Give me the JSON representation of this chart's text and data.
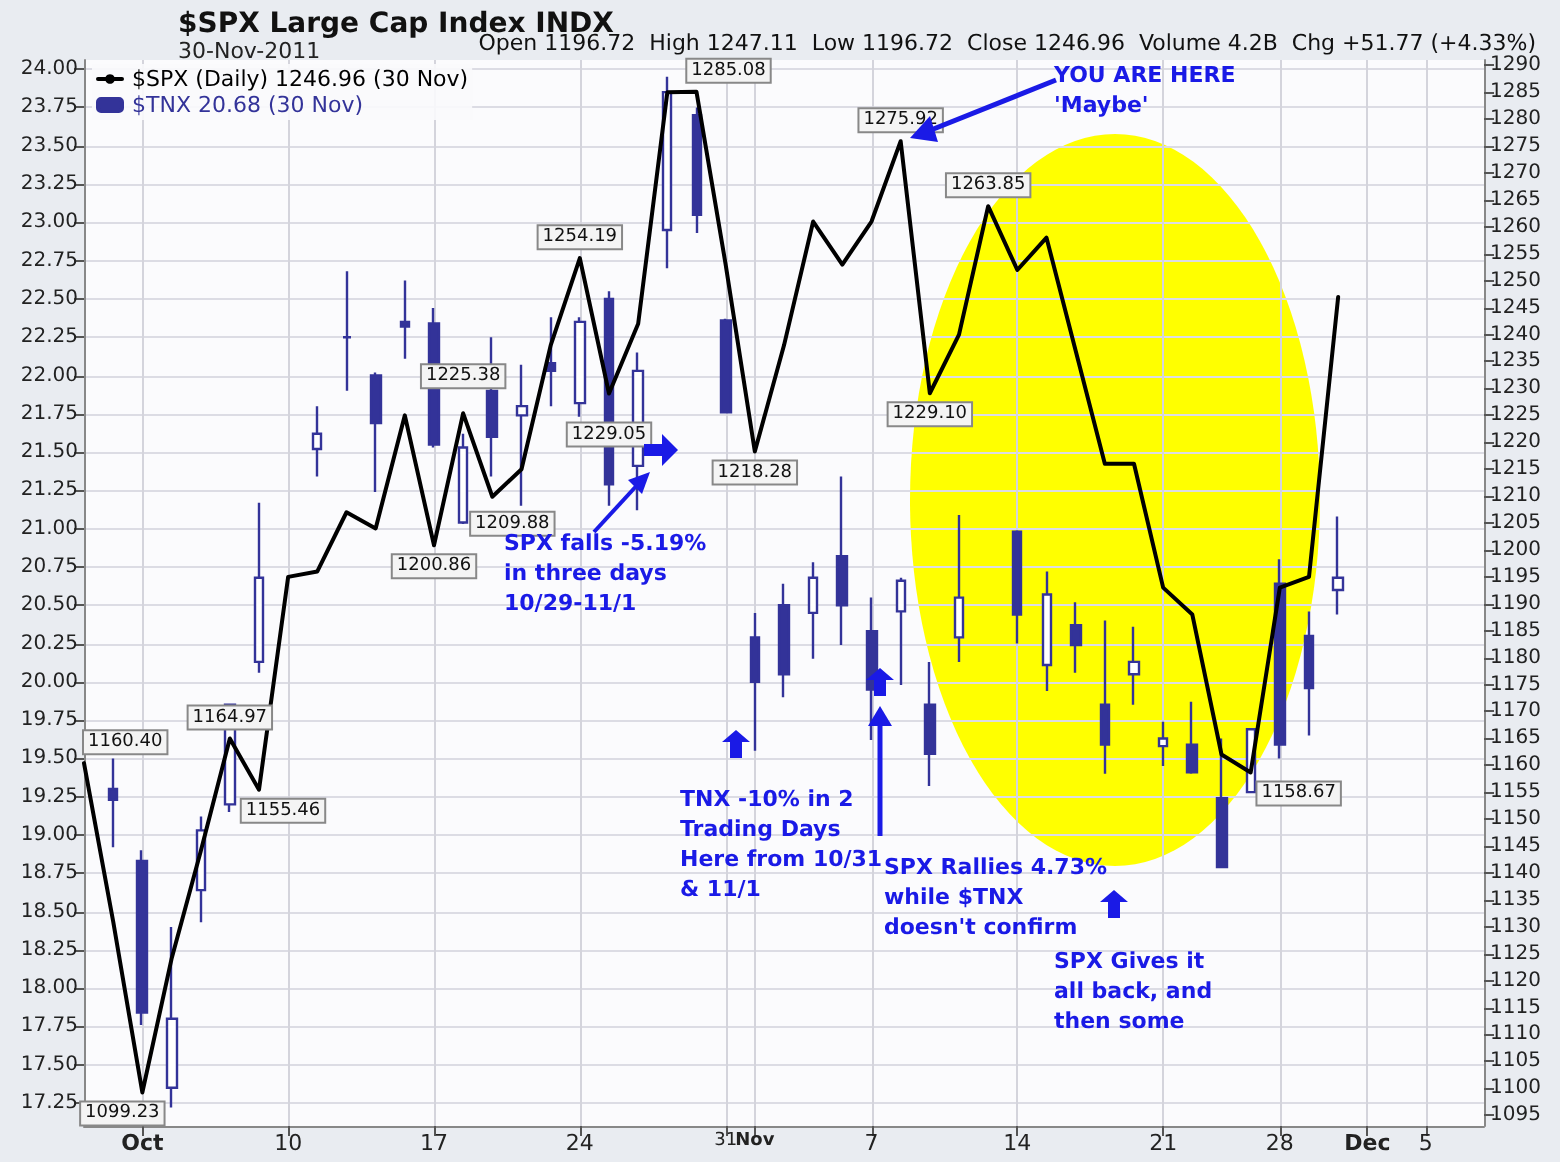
{
  "chart_data": {
    "type": "line",
    "title": "$SPX Large Cap Index INDX",
    "subtitle": "30-Nov-2011",
    "categories": [
      null,
      null,
      "Oct",
      null,
      null,
      null,
      null,
      "10",
      null,
      null,
      null,
      null,
      "17",
      null,
      null,
      null,
      null,
      "24",
      null,
      null,
      null,
      null,
      "31",
      "Nov",
      null,
      null,
      null,
      "7",
      null,
      null,
      null,
      null,
      "14",
      null,
      null,
      null,
      null,
      "21",
      null,
      null,
      null,
      "28",
      null,
      null,
      "Dec",
      null,
      "5",
      null,
      null
    ],
    "series": [
      {
        "name": "$SPX (Daily) 1246.96 (30 Nov)",
        "axis": "y2",
        "color": "#000000",
        "values": [
          1160.4,
          1131,
          1099.23,
          1124,
          1144,
          1164.97,
          1155.46,
          1195,
          1196,
          1207,
          1204,
          1225,
          1200.86,
          1225.38,
          1209.88,
          1215,
          1238,
          1254.19,
          1229.05,
          1242,
          1285,
          1285.08,
          1253,
          1218.28,
          1238,
          1261,
          1253,
          1261,
          1275.92,
          1229.1,
          1240,
          1263.85,
          1252,
          1258,
          1237,
          1216,
          1216,
          1193,
          1188,
          1162,
          1158.67,
          1193,
          1195,
          1247,
          null,
          null,
          null,
          null,
          null
        ],
        "value_labels": [
          "1160.40",
          null,
          "1099.23",
          null,
          null,
          "1164.97",
          "1155.46",
          null,
          null,
          null,
          null,
          null,
          "1200.86",
          "1225.38",
          "1209.88",
          null,
          null,
          "1254.19",
          "1229.05",
          null,
          null,
          "1285.08",
          null,
          "1218.28",
          null,
          null,
          null,
          null,
          "1275.92",
          "1229.10",
          null,
          "1263.85",
          null,
          null,
          null,
          null,
          null,
          null,
          null,
          null,
          "1158.67",
          null,
          null,
          null,
          null,
          null,
          null,
          null,
          null
        ]
      },
      {
        "name": "$TNX 20.68 (30 Nov)",
        "type": "candlestick",
        "color": "#333399",
        "ohlc": [
          null,
          [
            19.3,
            19.5,
            18.92,
            19.23
          ],
          [
            18.83,
            18.9,
            17.76,
            17.84
          ],
          [
            17.35,
            18.4,
            17.22,
            17.8
          ],
          [
            18.64,
            19.12,
            18.43,
            19.03
          ],
          [
            19.2,
            19.85,
            19.15,
            19.85
          ],
          [
            20.13,
            21.17,
            20.06,
            20.68
          ],
          null,
          [
            21.52,
            21.8,
            21.34,
            21.62
          ],
          [
            22.25,
            22.68,
            21.9,
            22.25
          ],
          [
            22.0,
            22.02,
            21.24,
            21.69
          ],
          [
            22.35,
            22.62,
            22.11,
            22.32
          ],
          [
            22.34,
            22.44,
            21.53,
            21.55
          ],
          [
            21.04,
            21.62,
            21.03,
            21.53
          ],
          [
            21.9,
            22.25,
            21.34,
            21.6
          ],
          [
            21.74,
            22.07,
            21.15,
            21.8
          ],
          [
            22.08,
            22.38,
            21.8,
            22.03
          ],
          [
            21.82,
            22.38,
            21.73,
            22.35
          ],
          [
            22.5,
            22.55,
            21.15,
            21.29
          ],
          [
            21.41,
            22.15,
            21.12,
            22.03
          ],
          [
            22.95,
            23.95,
            22.7,
            23.85
          ],
          [
            23.7,
            23.75,
            22.93,
            23.05
          ],
          [
            22.36,
            22.37,
            21.76,
            21.76
          ],
          [
            20.29,
            20.45,
            19.55,
            20.0
          ],
          [
            20.5,
            20.64,
            19.9,
            20.05
          ],
          [
            20.45,
            20.78,
            20.15,
            20.68
          ],
          [
            20.82,
            21.34,
            20.24,
            20.5
          ],
          [
            20.33,
            20.55,
            19.62,
            19.95
          ],
          [
            20.46,
            20.68,
            19.98,
            20.66
          ],
          [
            19.85,
            20.13,
            19.32,
            19.53
          ],
          [
            20.29,
            21.09,
            20.13,
            20.55
          ],
          null,
          [
            20.98,
            20.99,
            20.25,
            20.44
          ],
          [
            20.11,
            20.72,
            19.94,
            20.57
          ],
          [
            20.37,
            20.52,
            20.06,
            20.24
          ],
          [
            19.85,
            20.4,
            19.4,
            19.59
          ],
          [
            20.05,
            20.36,
            19.85,
            20.13
          ],
          [
            19.58,
            19.74,
            19.45,
            19.63
          ],
          [
            19.59,
            19.87,
            19.4,
            19.41
          ],
          [
            19.24,
            19.63,
            18.79,
            18.79
          ],
          [
            19.28,
            19.69,
            19.28,
            19.69
          ],
          [
            20.64,
            20.8,
            19.5,
            19.59
          ],
          [
            20.3,
            20.46,
            19.65,
            19.96
          ],
          [
            20.6,
            21.08,
            20.44,
            20.68
          ],
          null,
          null,
          null,
          null,
          null
        ]
      }
    ],
    "ylim": [
      17.1,
      24.06
    ],
    "yticks": [
      17.25,
      {
        "value": 17.5,
        "label": "17.50"
      },
      17.75,
      {
        "value": 18,
        "label": "18.00"
      },
      18.25,
      {
        "value": 18.5,
        "label": "18.50"
      },
      18.75,
      {
        "value": 19,
        "label": "19.00"
      },
      19.25,
      {
        "value": 19.5,
        "label": "19.50"
      },
      19.75,
      {
        "value": 20,
        "label": "20.00"
      },
      20.25,
      {
        "value": 20.5,
        "label": "20.50"
      },
      20.75,
      {
        "value": 21,
        "label": "21.00"
      },
      21.25,
      {
        "value": 21.5,
        "label": "21.50"
      },
      21.75,
      {
        "value": 22,
        "label": "22.00"
      },
      22.25,
      {
        "value": 22.5,
        "label": "22.50"
      },
      22.75,
      {
        "value": 23,
        "label": "23.00"
      },
      23.25,
      {
        "value": 23.5,
        "label": "23.50"
      },
      23.75,
      {
        "value": 24,
        "label": "24.00"
      }
    ],
    "y2lim": [
      1093,
      1291
    ],
    "y2ticks": [
      1095,
      1100,
      1105,
      1110,
      1115,
      1120,
      1125,
      1130,
      1135,
      1140,
      1145,
      1150,
      1155,
      1160,
      1165,
      1170,
      1175,
      1180,
      1185,
      1190,
      1195,
      1200,
      1205,
      1210,
      1215,
      1220,
      1225,
      1230,
      1235,
      1240,
      1245,
      1250,
      1255,
      1260,
      1265,
      1270,
      1275,
      1280,
      1285,
      1290
    ],
    "grid": true,
    "legend": "top left",
    "marker": "none",
    "annotations": [
      "Open 1196.72  High 1247.11  Low 1196.72  Close 1246.96  Volume 4.2B  Chg +51.77 (+4.33%)",
      "YOU ARE HERE\n'Maybe'",
      "SPX falls -5.19%\nin three days\n10/29-11/1",
      "TNX -10% in 2\nTrading Days\nHere from 10/31\n& 11/1",
      "SPX Rallies 4.73%\nwhile $TNX\ndoesn't confirm",
      "SPX Gives it\nall back, and\nthen some"
    ]
  }
}
